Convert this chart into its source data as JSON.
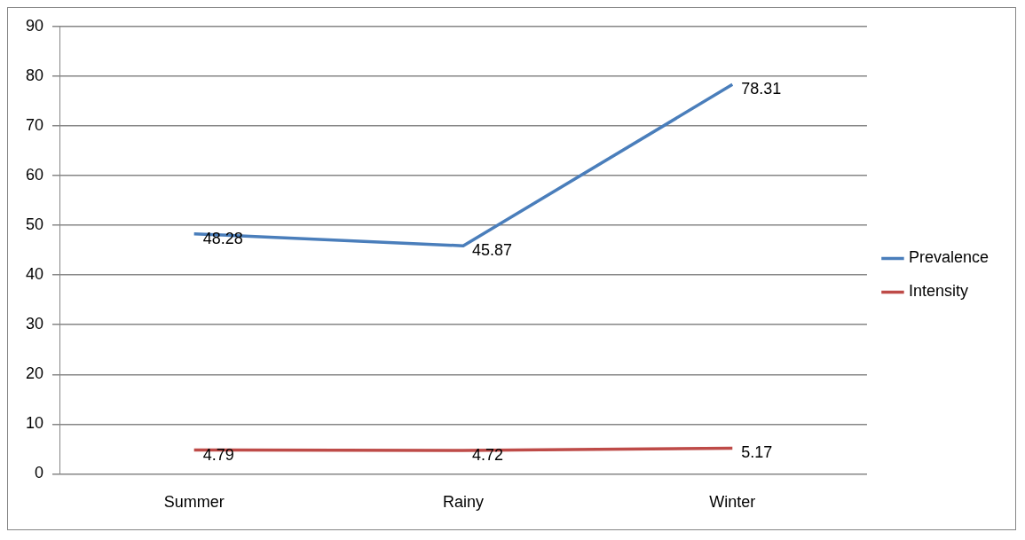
{
  "chart_data": {
    "type": "line",
    "categories": [
      "Summer",
      "Rainy",
      "Winter"
    ],
    "series": [
      {
        "name": "Prevalence",
        "color": "#4a7ebb",
        "values": [
          48.28,
          45.87,
          78.31
        ]
      },
      {
        "name": "Intensity",
        "color": "#be4b48",
        "values": [
          4.79,
          4.72,
          5.17
        ]
      }
    ],
    "ylim": [
      0,
      90
    ],
    "yticks": [
      0,
      10,
      20,
      30,
      40,
      50,
      60,
      70,
      80,
      90
    ],
    "grid": "y",
    "legend": "right",
    "marker": "none",
    "line_style": "solid",
    "data_labels": true
  }
}
